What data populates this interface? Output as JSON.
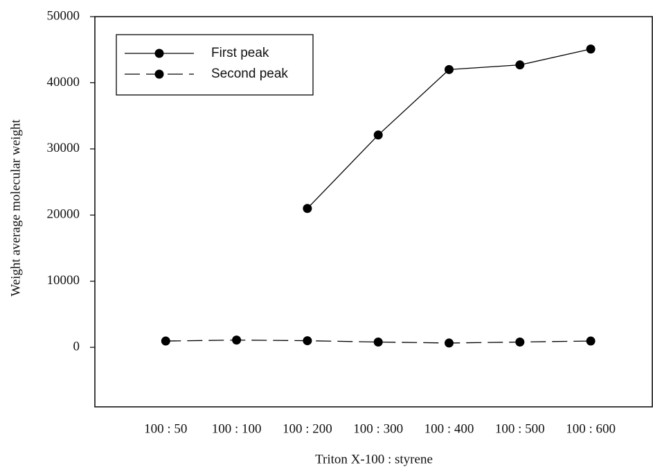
{
  "chart_data": {
    "type": "line",
    "x_label": "Triton X-100 : styrene",
    "y_label": "Weight average molecular weight",
    "categories": [
      "100 : 50",
      "100 : 100",
      "100 : 200",
      "100 : 300",
      "100 : 400",
      "100 : 500",
      "100 : 600"
    ],
    "series": [
      {
        "name": "First peak",
        "color": "#000000",
        "style": "solid",
        "values": [
          null,
          null,
          21000,
          32100,
          42000,
          42700,
          45100
        ]
      },
      {
        "name": "Second peak",
        "color": "#000000",
        "style": "dashed",
        "values": [
          950,
          1100,
          1000,
          800,
          650,
          800,
          950
        ]
      }
    ],
    "ylim": [
      -9000,
      50000
    ],
    "yticks": [
      0,
      10000,
      20000,
      30000,
      40000,
      50000
    ],
    "grid": false,
    "legend": "upper left"
  }
}
